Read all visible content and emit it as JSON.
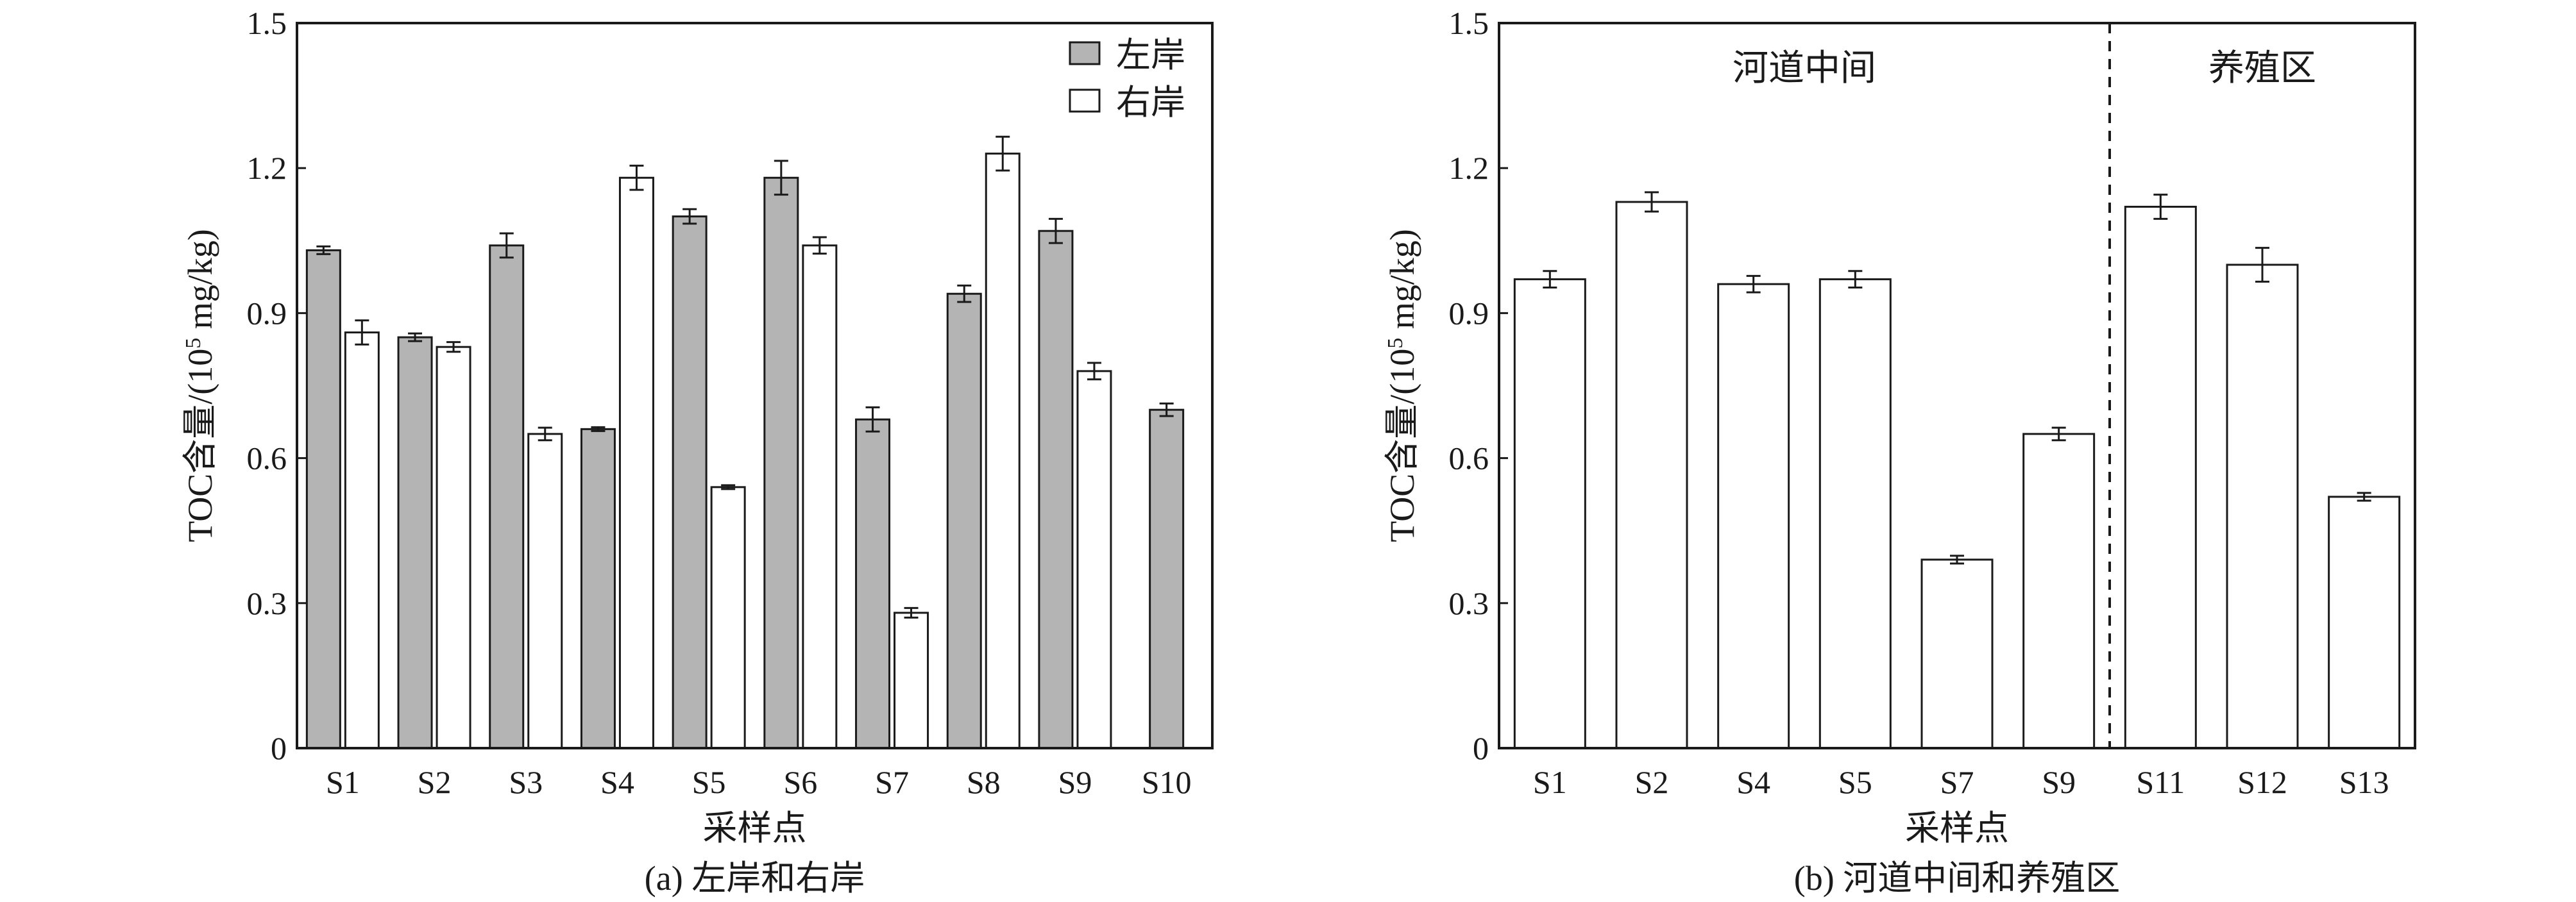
{
  "colors": {
    "left_bank": "#b4b4b4",
    "right_bank": "#ffffff",
    "stroke": "#1a1a1a"
  },
  "chart_data": [
    {
      "type": "bar",
      "caption": "(a) 左岸和右岸",
      "xlabel": "采样点",
      "ylabel_main": "TOC含量/(10",
      "ylabel_sup": "5",
      "ylabel_tail": " mg/kg)",
      "ylim": [
        0,
        1.5
      ],
      "yticks": [
        0,
        0.3,
        0.6,
        0.9,
        1.2,
        1.5
      ],
      "ytick_labels": [
        "0",
        "0.3",
        "0.6",
        "0.9",
        "1.2",
        "1.5"
      ],
      "legend_position": "top-right",
      "categories": [
        "S1",
        "S2",
        "S3",
        "S4",
        "S5",
        "S6",
        "S7",
        "S8",
        "S9",
        "S10"
      ],
      "series": [
        {
          "name": "左岸",
          "values": [
            1.03,
            0.85,
            1.04,
            0.66,
            1.1,
            1.18,
            0.68,
            0.94,
            1.07,
            0.7
          ],
          "errors": [
            0.008,
            0.008,
            0.025,
            0.004,
            0.015,
            0.035,
            0.025,
            0.017,
            0.025,
            0.013
          ]
        },
        {
          "name": "右岸",
          "values": [
            0.86,
            0.83,
            0.65,
            1.18,
            0.54,
            1.04,
            0.28,
            1.23,
            0.78,
            null
          ],
          "errors": [
            0.025,
            0.01,
            0.013,
            0.025,
            0.004,
            0.017,
            0.01,
            0.035,
            0.017,
            null
          ]
        }
      ]
    },
    {
      "type": "bar",
      "caption": "(b) 河道中间和养殖区",
      "xlabel": "采样点",
      "ylabel_main": "TOC含量/(10",
      "ylabel_sup": "5",
      "ylabel_tail": " mg/kg)",
      "ylim": [
        0,
        1.5
      ],
      "yticks": [
        0,
        0.3,
        0.6,
        0.9,
        1.2,
        1.5
      ],
      "ytick_labels": [
        "0",
        "0.3",
        "0.6",
        "0.9",
        "1.2",
        "1.5"
      ],
      "categories": [
        "S1",
        "S2",
        "S4",
        "S5",
        "S7",
        "S9",
        "S11",
        "S12",
        "S13"
      ],
      "values": [
        0.97,
        1.13,
        0.96,
        0.97,
        0.39,
        0.65,
        1.12,
        1.0,
        0.52
      ],
      "errors": [
        0.017,
        0.02,
        0.017,
        0.017,
        0.008,
        0.013,
        0.025,
        0.035,
        0.008
      ],
      "regions": [
        {
          "label": "河道中间",
          "start_index": 0,
          "end_index": 5
        },
        {
          "label": "养殖区",
          "start_index": 6,
          "end_index": 8
        }
      ]
    }
  ]
}
